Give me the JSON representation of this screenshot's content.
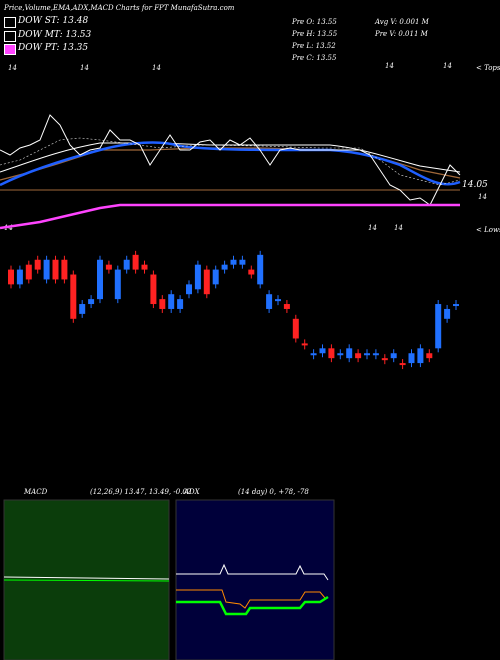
{
  "header": {
    "title": "Price,Volume,EMA,ADX,MACD Charts for FPT MunafaSutra.com"
  },
  "legend": [
    {
      "label": "DOW ST: 13.48",
      "color": "#000000"
    },
    {
      "label": "DOW MT: 13.53",
      "color": "#000000"
    },
    {
      "label": "DOW PT: 13.35",
      "color": "#ff44ff"
    }
  ],
  "prices": {
    "open": "Pre   O: 13.55",
    "high": "Pre   H: 13.55",
    "low": "Pre   L: 13.52",
    "close": "Pre   C: 13.55",
    "avg_vol": "Avg V: 0.001 M",
    "pre_vol": "Pre   V: 0.011 M"
  },
  "top_ticks": [
    "14",
    "14",
    "14",
    "14",
    "14"
  ],
  "top_right_label": "< Tops",
  "mid_ticks": [
    "14",
    "14",
    "14"
  ],
  "lows_label": "< Lows",
  "price_label": "14.05",
  "price_label2": "14",
  "colors": {
    "ema_blue": "#1f5fff",
    "ema_white": "#ffffff",
    "ema_brown": "#a0683a",
    "dow_pt": "#ff44ff",
    "candle_up": "#2070ff",
    "candle_down": "#ff2222",
    "macd_bg": "#0b3d0b",
    "adx_bg": "#00003a",
    "adx_plus": "#00ff00",
    "adx_minus": "#ff8a00"
  },
  "macd": {
    "label": "MACD",
    "values": "(12,26,9) 13.47, 13.49, -0.02"
  },
  "adx": {
    "label": "ADX",
    "values": "(14 day) 0, +78, -78"
  },
  "chart_data": [
    {
      "type": "line",
      "title": "Price,Volume,EMA,ADX,MACD Charts for FPT",
      "series": [
        {
          "name": "DOW ST",
          "values": [
            13.48
          ]
        },
        {
          "name": "DOW MT",
          "values": [
            13.53
          ]
        },
        {
          "name": "DOW PT",
          "values": [
            13.35
          ]
        }
      ]
    },
    {
      "type": "bar",
      "candles": [
        {
          "dir": "down",
          "o": 14.2,
          "c": 14.05
        },
        {
          "dir": "up",
          "o": 14.05,
          "c": 14.2
        },
        {
          "dir": "down",
          "o": 14.25,
          "c": 14.1
        },
        {
          "dir": "down",
          "o": 14.3,
          "c": 14.2
        },
        {
          "dir": "up",
          "o": 14.1,
          "c": 14.3
        },
        {
          "dir": "down",
          "o": 14.3,
          "c": 14.1
        },
        {
          "dir": "down",
          "o": 14.3,
          "c": 14.1
        },
        {
          "dir": "down",
          "o": 14.15,
          "c": 13.7
        },
        {
          "dir": "up",
          "o": 13.75,
          "c": 13.85
        },
        {
          "dir": "up",
          "o": 13.85,
          "c": 13.9
        },
        {
          "dir": "up",
          "o": 13.9,
          "c": 14.3
        },
        {
          "dir": "down",
          "o": 14.25,
          "c": 14.2
        },
        {
          "dir": "up",
          "o": 13.9,
          "c": 14.2
        },
        {
          "dir": "up",
          "o": 14.2,
          "c": 14.3
        },
        {
          "dir": "down",
          "o": 14.35,
          "c": 14.2
        },
        {
          "dir": "down",
          "o": 14.2,
          "c": 14.25
        },
        {
          "dir": "down",
          "o": 14.15,
          "c": 13.85
        },
        {
          "dir": "down",
          "o": 13.9,
          "c": 13.8
        },
        {
          "dir": "up",
          "o": 13.8,
          "c": 13.95
        },
        {
          "dir": "up",
          "o": 13.8,
          "c": 13.9
        },
        {
          "dir": "up",
          "o": 13.95,
          "c": 14.05
        },
        {
          "dir": "up",
          "o": 14.0,
          "c": 14.25
        },
        {
          "dir": "down",
          "o": 14.2,
          "c": 13.95
        },
        {
          "dir": "up",
          "o": 14.05,
          "c": 14.2
        },
        {
          "dir": "up",
          "o": 14.2,
          "c": 14.25
        },
        {
          "dir": "up",
          "o": 14.25,
          "c": 14.3
        },
        {
          "dir": "up",
          "o": 14.3,
          "c": 14.25
        },
        {
          "dir": "down",
          "o": 14.2,
          "c": 14.15
        },
        {
          "dir": "up",
          "o": 14.05,
          "c": 14.35
        },
        {
          "dir": "up",
          "o": 13.8,
          "c": 13.95
        },
        {
          "dir": "up",
          "o": 13.9,
          "c": 13.9
        },
        {
          "dir": "down",
          "o": 13.85,
          "c": 13.8
        },
        {
          "dir": "down",
          "o": 13.7,
          "c": 13.5
        },
        {
          "dir": "down",
          "o": 13.45,
          "c": 13.45
        },
        {
          "dir": "up",
          "o": 13.35,
          "c": 13.35
        },
        {
          "dir": "up",
          "o": 13.35,
          "c": 13.4
        },
        {
          "dir": "down",
          "o": 13.4,
          "c": 13.3
        },
        {
          "dir": "up",
          "o": 13.35,
          "c": 13.35
        },
        {
          "dir": "up",
          "o": 13.3,
          "c": 13.4
        },
        {
          "dir": "down",
          "o": 13.35,
          "c": 13.3
        },
        {
          "dir": "up",
          "o": 13.35,
          "c": 13.35
        },
        {
          "dir": "up",
          "o": 13.35,
          "c": 13.35
        },
        {
          "dir": "down",
          "o": 13.3,
          "c": 13.3
        },
        {
          "dir": "up",
          "o": 13.3,
          "c": 13.35
        },
        {
          "dir": "down",
          "o": 13.25,
          "c": 13.25
        },
        {
          "dir": "up",
          "o": 13.25,
          "c": 13.35
        },
        {
          "dir": "up",
          "o": 13.25,
          "c": 13.4
        },
        {
          "dir": "down",
          "o": 13.35,
          "c": 13.3
        },
        {
          "dir": "up",
          "o": 13.4,
          "c": 13.85
        },
        {
          "dir": "up",
          "o": 13.7,
          "c": 13.8
        },
        {
          "dir": "up",
          "o": 13.85,
          "c": 13.85
        }
      ]
    }
  ]
}
